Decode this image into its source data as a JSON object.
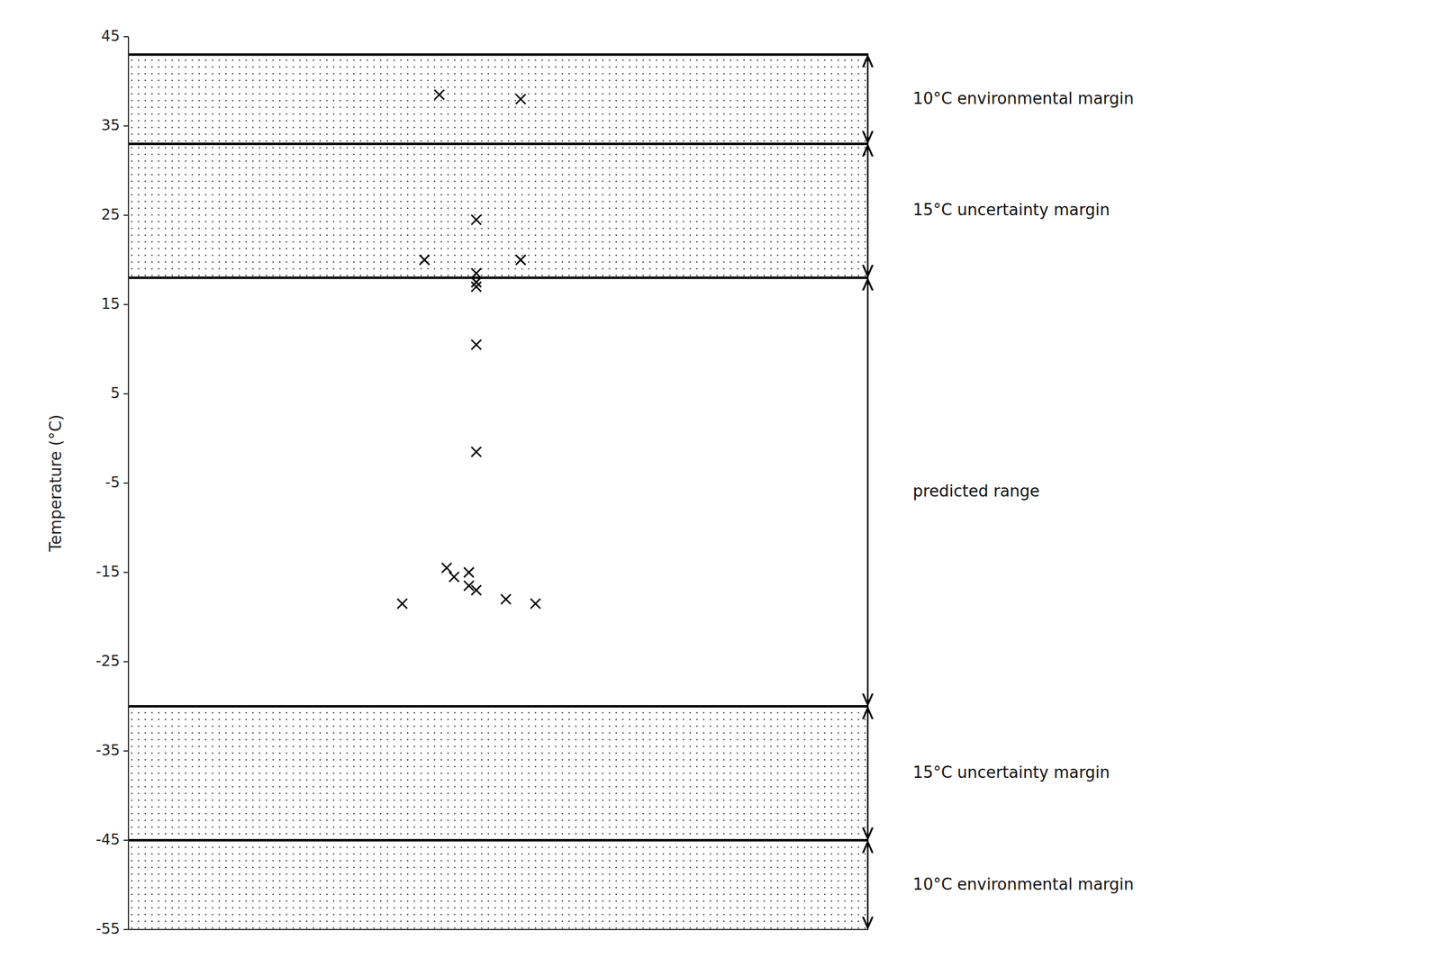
{
  "chart_data": {
    "type": "scatter",
    "ylabel": "Temperature (°C)",
    "xlim": [
      0,
      1
    ],
    "ylim": [
      -55,
      45
    ],
    "yticks": [
      45,
      35,
      25,
      15,
      5,
      -5,
      -15,
      -25,
      -35,
      -45,
      -55
    ],
    "tick_labels": "y",
    "marker": "x",
    "color": "#000000",
    "x": [
      0.42,
      0.53,
      0.4,
      0.47,
      0.47,
      0.47,
      0.47,
      0.53,
      0.47,
      0.47,
      0.37,
      0.43,
      0.44,
      0.46,
      0.46,
      0.47,
      0.51,
      0.55
    ],
    "values": [
      38.5,
      38.0,
      20.0,
      24.5,
      18.5,
      17.5,
      17.0,
      20.0,
      10.5,
      -1.5,
      -18.5,
      -14.5,
      -15.5,
      -15.0,
      -16.5,
      -17.0,
      -18.0,
      -18.5
    ],
    "bands": [
      {
        "y_min": 33,
        "y_max": 43,
        "color": "#000000"
      },
      {
        "y_min": 18,
        "y_max": 33,
        "color": "#000000"
      },
      {
        "y_min": -45,
        "y_max": -30,
        "color": "#000000"
      },
      {
        "y_min": -55,
        "y_max": -45,
        "color": "#000000"
      }
    ],
    "boundary_lines": [
      43,
      33,
      18,
      -30,
      -45
    ],
    "annotations": [
      {
        "text": "10°C environmental margin",
        "y1": 43,
        "y2": 33,
        "y_center": 38.0
      },
      {
        "text": "15°C uncertainty margin",
        "y1": 33,
        "y2": 18,
        "y_center": 25.5
      },
      {
        "text": "predicted range",
        "y1": 18,
        "y2": -30,
        "y_center": -6.0
      },
      {
        "text": "15°C uncertainty margin",
        "y1": -30,
        "y2": -45,
        "y_center": -37.5
      },
      {
        "text": "10°C environmental margin",
        "y1": -45,
        "y2": -55,
        "y_center": -50.0
      }
    ]
  }
}
